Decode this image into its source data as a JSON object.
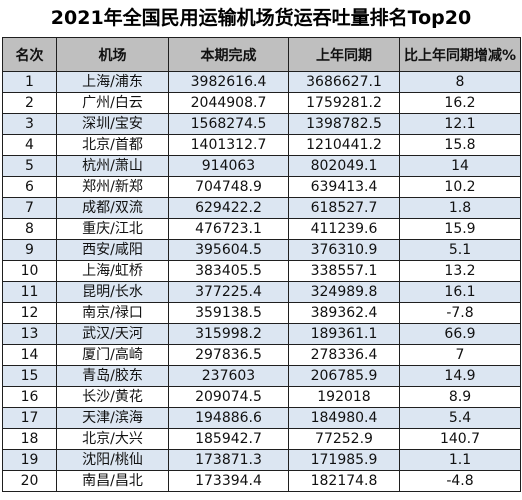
{
  "title": "2021年全国民用运输机场货运吞吐量排名Top20",
  "headers": [
    "名次",
    "机场",
    "本期完成",
    "上年同期",
    "比上年同期增减%"
  ],
  "rows": [
    [
      "1",
      "上海/浦东",
      "3982616.4",
      "3686627.1",
      "8"
    ],
    [
      "2",
      "广州/白云",
      "2044908.7",
      "1759281.2",
      "16.2"
    ],
    [
      "3",
      "深圳/宝安",
      "1568274.5",
      "1398782.5",
      "12.1"
    ],
    [
      "4",
      "北京/首都",
      "1401312.7",
      "1210441.2",
      "15.8"
    ],
    [
      "5",
      "杭州/萧山",
      "914063",
      "802049.1",
      "14"
    ],
    [
      "6",
      "郑州/新郑",
      "704748.9",
      "639413.4",
      "10.2"
    ],
    [
      "7",
      "成都/双流",
      "629422.2",
      "618527.7",
      "1.8"
    ],
    [
      "8",
      "重庆/江北",
      "476723.1",
      "411239.6",
      "15.9"
    ],
    [
      "9",
      "西安/咸阳",
      "395604.5",
      "376310.9",
      "5.1"
    ],
    [
      "10",
      "上海/虹桥",
      "383405.5",
      "338557.1",
      "13.2"
    ],
    [
      "11",
      "昆明/长水",
      "377225.4",
      "324989.8",
      "16.1"
    ],
    [
      "12",
      "南京/禄口",
      "359138.5",
      "389362.4",
      "-7.8"
    ],
    [
      "13",
      "武汉/天河",
      "315998.2",
      "189361.1",
      "66.9"
    ],
    [
      "14",
      "厦门/高崎",
      "297836.5",
      "278336.4",
      "7"
    ],
    [
      "15",
      "青岛/胶东",
      "237603",
      "206785.9",
      "14.9"
    ],
    [
      "16",
      "长沙/黄花",
      "209074.5",
      "192018",
      "8.9"
    ],
    [
      "17",
      "天津/滨海",
      "194886.6",
      "184980.4",
      "5.4"
    ],
    [
      "18",
      "北京/大兴",
      "185942.7",
      "77252.9",
      "140.7"
    ],
    [
      "19",
      "沈阳/桃仙",
      "173871.3",
      "171985.9",
      "1.1"
    ],
    [
      "20",
      "南昌/昌北",
      "173394.4",
      "182174.8",
      "-4.8"
    ]
  ]
}
